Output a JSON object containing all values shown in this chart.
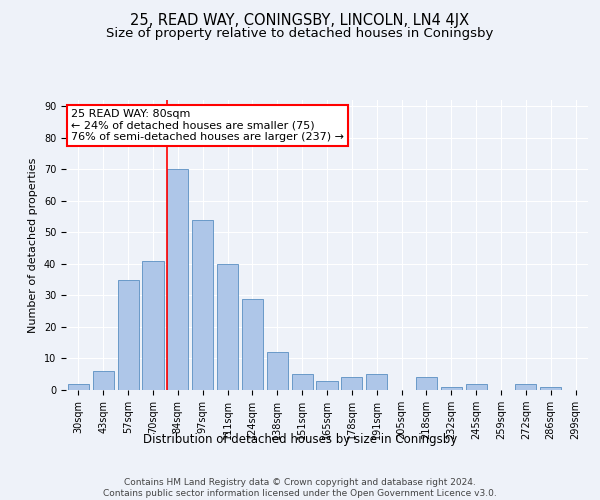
{
  "title": "25, READ WAY, CONINGSBY, LINCOLN, LN4 4JX",
  "subtitle": "Size of property relative to detached houses in Coningsby",
  "xlabel": "Distribution of detached houses by size in Coningsby",
  "ylabel": "Number of detached properties",
  "categories": [
    "30sqm",
    "43sqm",
    "57sqm",
    "70sqm",
    "84sqm",
    "97sqm",
    "111sqm",
    "124sqm",
    "138sqm",
    "151sqm",
    "165sqm",
    "178sqm",
    "191sqm",
    "205sqm",
    "218sqm",
    "232sqm",
    "245sqm",
    "259sqm",
    "272sqm",
    "286sqm",
    "299sqm"
  ],
  "values": [
    2,
    6,
    35,
    41,
    70,
    54,
    40,
    29,
    12,
    5,
    3,
    4,
    5,
    0,
    4,
    1,
    2,
    0,
    2,
    1,
    0
  ],
  "bar_color": "#aec6e8",
  "bar_edge_color": "#5a8fc2",
  "vline_color": "red",
  "annotation_text": "25 READ WAY: 80sqm\n← 24% of detached houses are smaller (75)\n76% of semi-detached houses are larger (237) →",
  "annotation_box_color": "white",
  "annotation_box_edgecolor": "red",
  "ylim": [
    0,
    92
  ],
  "yticks": [
    0,
    10,
    20,
    30,
    40,
    50,
    60,
    70,
    80,
    90
  ],
  "footer": "Contains HM Land Registry data © Crown copyright and database right 2024.\nContains public sector information licensed under the Open Government Licence v3.0.",
  "background_color": "#eef2f9",
  "grid_color": "white",
  "title_fontsize": 10.5,
  "subtitle_fontsize": 9.5,
  "annotation_fontsize": 8,
  "footer_fontsize": 6.5,
  "tick_fontsize": 7,
  "ylabel_fontsize": 8,
  "xlabel_fontsize": 8.5
}
